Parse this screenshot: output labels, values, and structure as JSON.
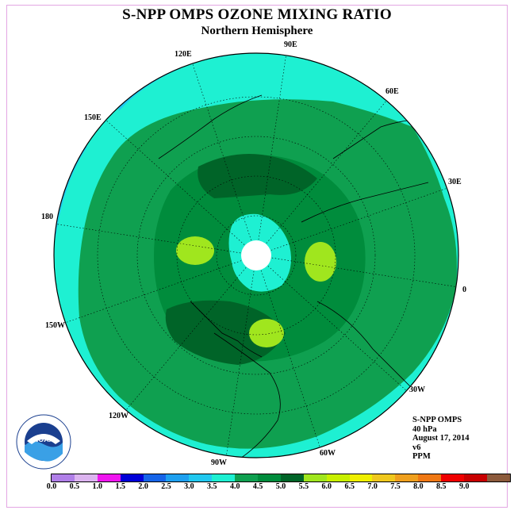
{
  "title": "S-NPP OMPS OZONE MIXING RATIO",
  "subtitle": "Northern Hemisphere",
  "longitude_labels": [
    "90E",
    "60E",
    "30E",
    "0",
    "30W",
    "60W",
    "90W",
    "120W",
    "150W",
    "180",
    "150E",
    "120E"
  ],
  "info": {
    "instrument": "S-NPP OMPS",
    "level": "40 hPa",
    "date": "August 17, 2014",
    "version": "v6",
    "units": "PPM"
  },
  "colorbar": {
    "colors": [
      "#b07fe8",
      "#dcb4f0",
      "#f016f0",
      "#0000d8",
      "#1664e8",
      "#1ea0f0",
      "#21c8f0",
      "#1ef0d2",
      "#0fa050",
      "#008c3c",
      "#006428",
      "#a0e61e",
      "#c8f000",
      "#f0f000",
      "#f0c81e",
      "#f0a01e",
      "#f07814",
      "#f00000",
      "#c80000",
      "#8c5a3c"
    ],
    "ticks": [
      "0.0",
      "0.5",
      "1.0",
      "1.5",
      "2.0",
      "2.5",
      "3.0",
      "3.5",
      "4.0",
      "4.5",
      "5.0",
      "5.5",
      "6.0",
      "6.5",
      "7.0",
      "7.5",
      "8.0",
      "8.5",
      "9.0"
    ]
  },
  "logo": {
    "text": "NOAA",
    "ring_text": "NATIONAL OCEANIC AND ATMOSPHERIC ADMINISTRATION U.S. DEPARTMENT OF COMMERCE"
  },
  "colors": {
    "cyan": "#1ef0d2",
    "green_4_0": "#0fa050",
    "green_4_5": "#008c3c",
    "green_5_0": "#006428",
    "lime": "#a0e61e",
    "light_blue": "#21c8f0"
  }
}
